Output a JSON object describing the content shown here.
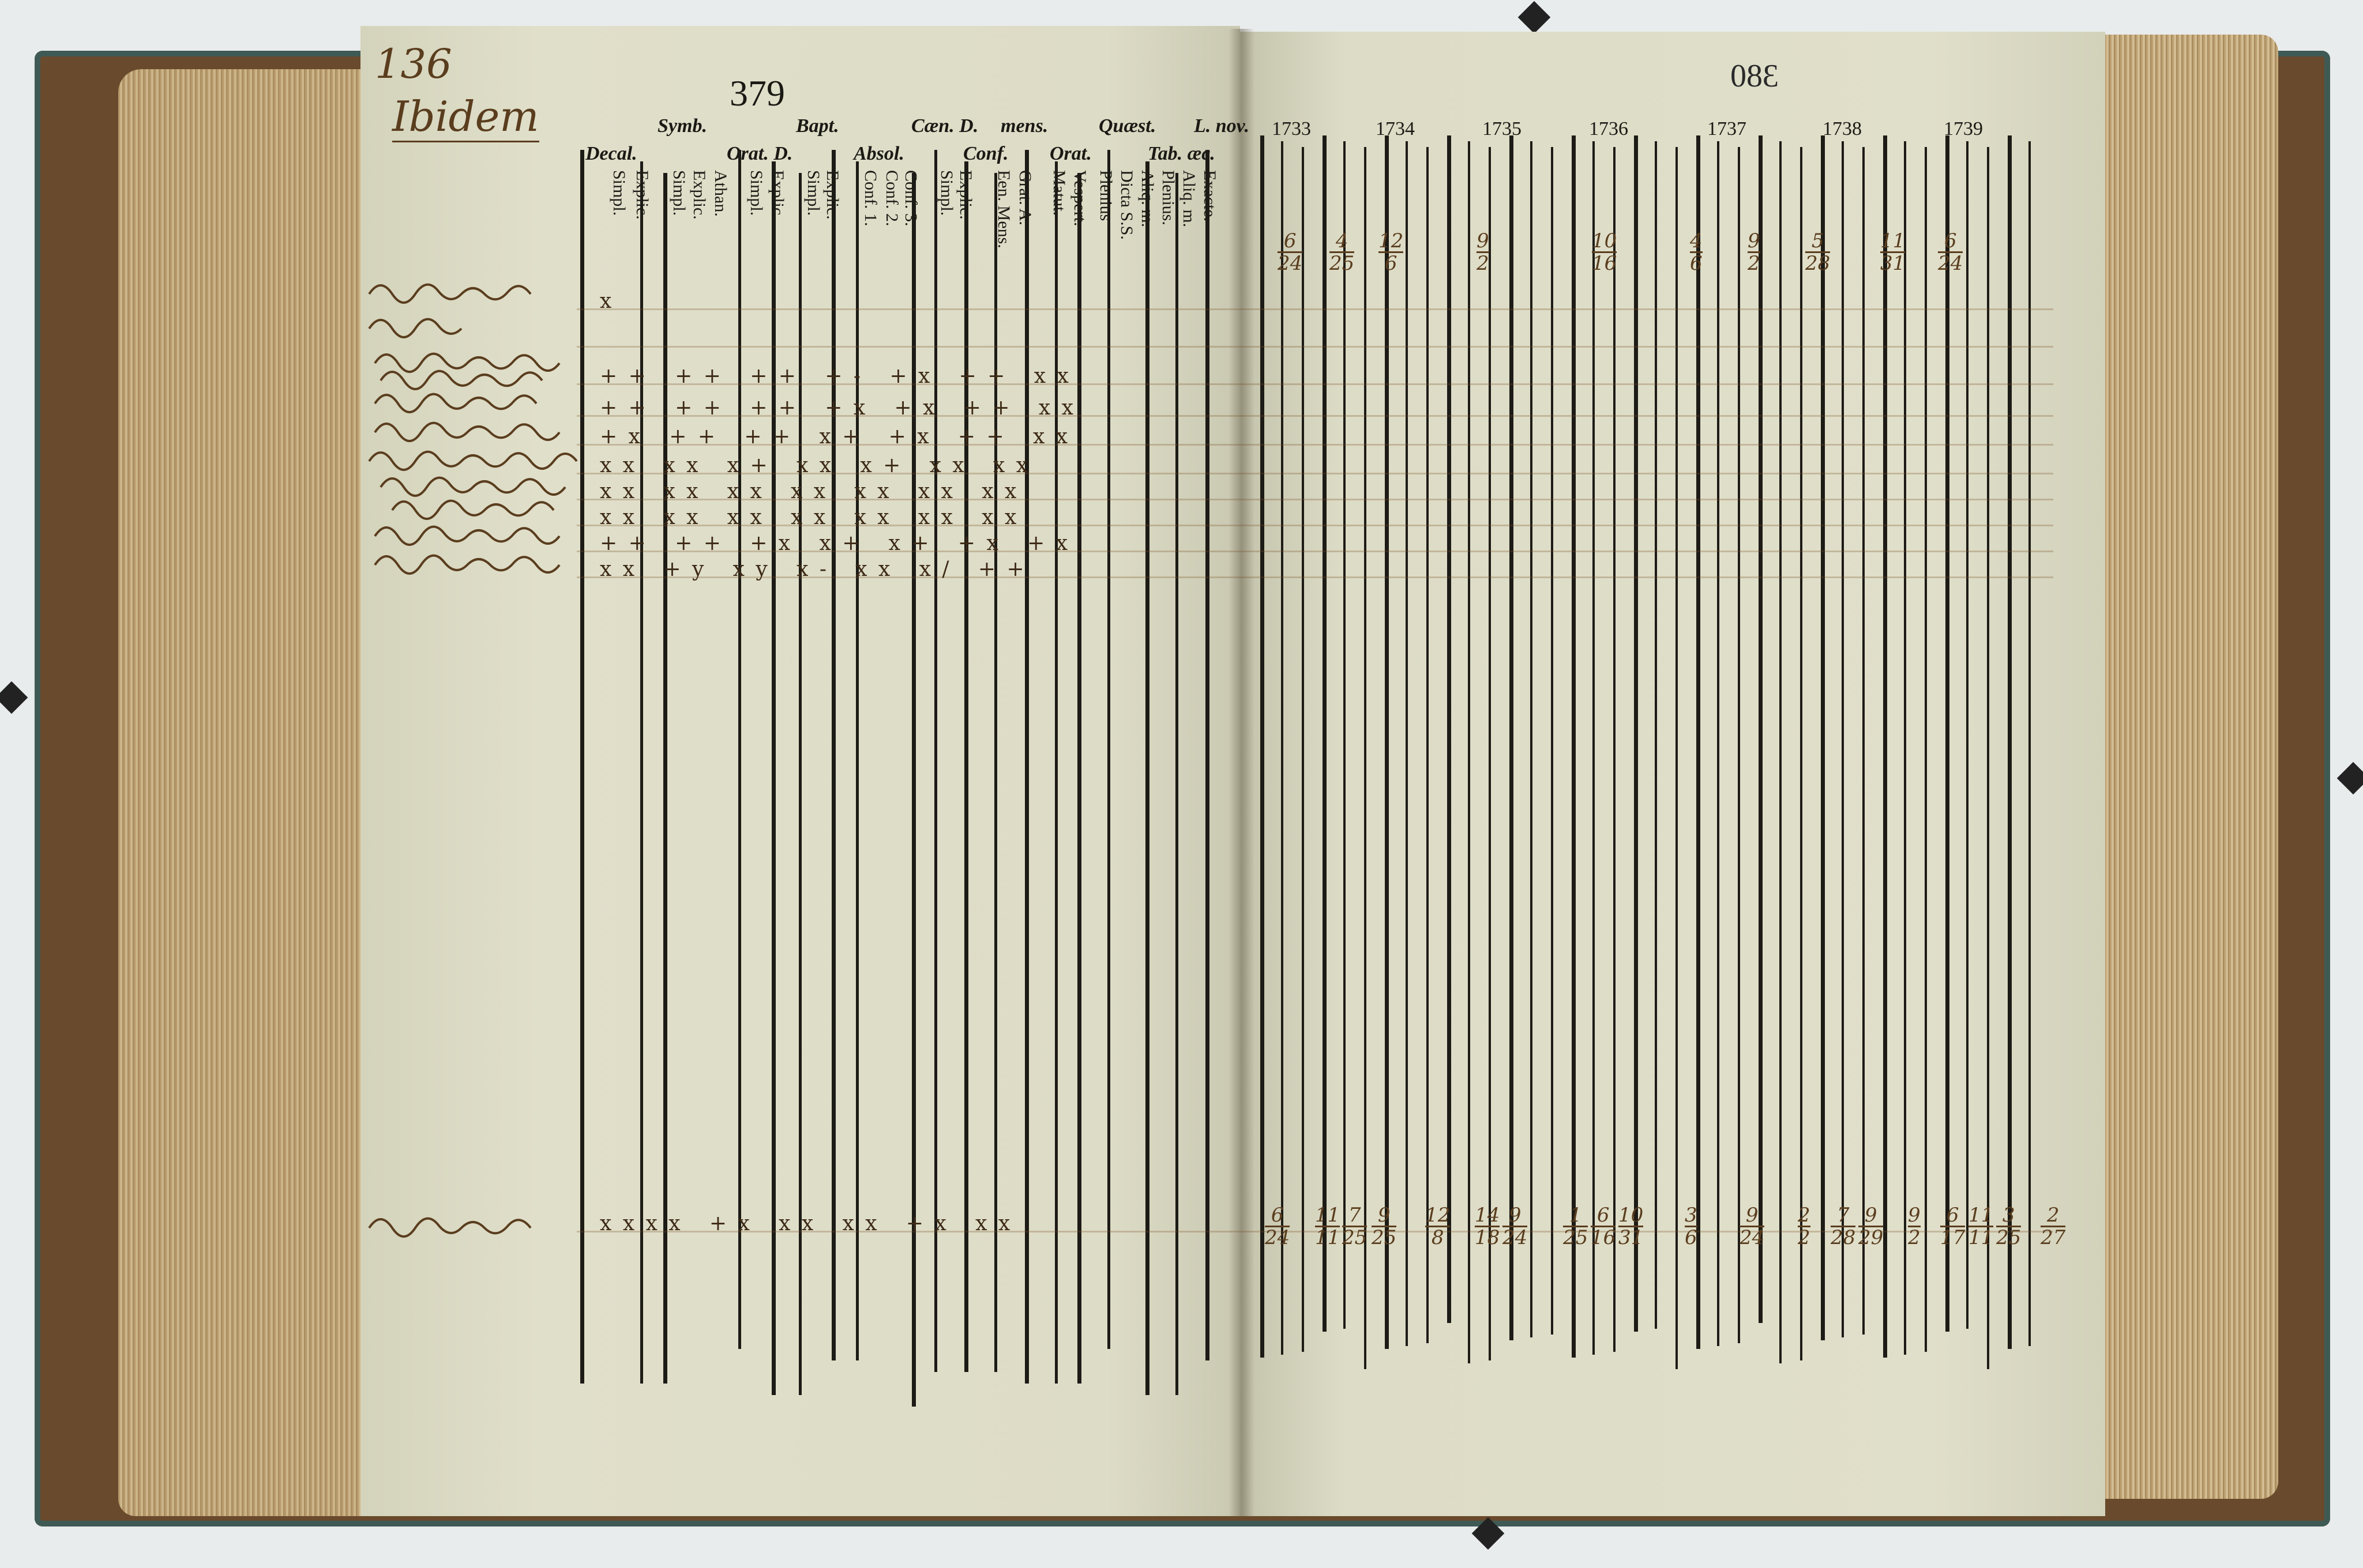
{
  "left_page": {
    "folio_number": "136",
    "heading": "Ibidem",
    "printed_page_number": "379",
    "group_headers": [
      "Decal.",
      "Symb.",
      "Orat. D.",
      "Bapt.",
      "Absol.",
      "Cæn. D.",
      "Conf.",
      "mens.",
      "Orat.",
      "Quæst.",
      "Tab. æc.",
      "L. nov."
    ],
    "column_headers": [
      "Simpl.",
      "Explic.",
      "Simpl.",
      "Explic.",
      "Athan.",
      "Simpl.",
      "Explic.",
      "Simpl.",
      "Explic.",
      "Conf. 1.",
      "Conf. 2.",
      "Conf. 3.",
      "Simpl.",
      "Explic.",
      "Een. Mens.",
      "Grat. A.",
      "Matut.",
      "Vespert.",
      "Plenius",
      "Dicta S.S.",
      "Aliq. m.",
      "Plenius.",
      "Aliq. m.",
      "Exacte."
    ],
    "row_marks": [
      "x",
      "",
      "+ +   + +   + +   + -   + x   + +   x x",
      "+ +   + +   + +   + x   + x   + +   x x",
      "+ x   + +   + +   x +   + x   + +   x x",
      "x x   x x   x +   x x   x +   x x   x x",
      "x x   x x   x x   x x   x x   x x   x x",
      "x x   x x   x x   x x   x x   x x   x x",
      "+ +   + +   + x   x +   x +   + x   + x",
      "x x   + y   x y   x -   x x   x /   + +",
      "x x x x   + x   x x   x x   + x   x x"
    ]
  },
  "right_page": {
    "printed_page_number_bleedthrough": "380",
    "years": [
      "1733",
      "1734",
      "1735",
      "1736",
      "1737",
      "1738",
      "1739"
    ],
    "total_row_fractions": [
      [
        "6",
        "24"
      ],
      [
        "11",
        "11"
      ],
      [
        "7",
        "25"
      ],
      [
        "9",
        "25"
      ],
      [
        "12",
        "8"
      ],
      [
        "14",
        "18"
      ],
      [
        "9",
        "24"
      ],
      [
        "1",
        "25"
      ],
      [
        "6",
        "16"
      ],
      [
        "10",
        "31"
      ],
      [
        "3",
        "6"
      ],
      [
        "9",
        "24"
      ],
      [
        "2",
        "2"
      ],
      [
        "7",
        "28"
      ],
      [
        "9",
        "29"
      ],
      [
        "9",
        "2"
      ],
      [
        "6",
        "17"
      ],
      [
        "11",
        "11"
      ],
      [
        "3",
        "25"
      ],
      [
        "2",
        "27"
      ]
    ],
    "top_row_fractions": [
      [
        "6",
        "24"
      ],
      [
        "4",
        "25"
      ],
      [
        "12",
        "6"
      ],
      [
        "9",
        "2"
      ],
      [
        "10",
        "16"
      ],
      [
        "4",
        "6"
      ],
      [
        "9",
        "2"
      ],
      [
        "5",
        "28"
      ],
      [
        "11",
        "31"
      ],
      [
        "6",
        "24"
      ]
    ]
  },
  "colors": {
    "ink": "#5a3d1e",
    "print": "#1a1914",
    "paper": "#dddcc6",
    "cover": "#3f5a55"
  }
}
